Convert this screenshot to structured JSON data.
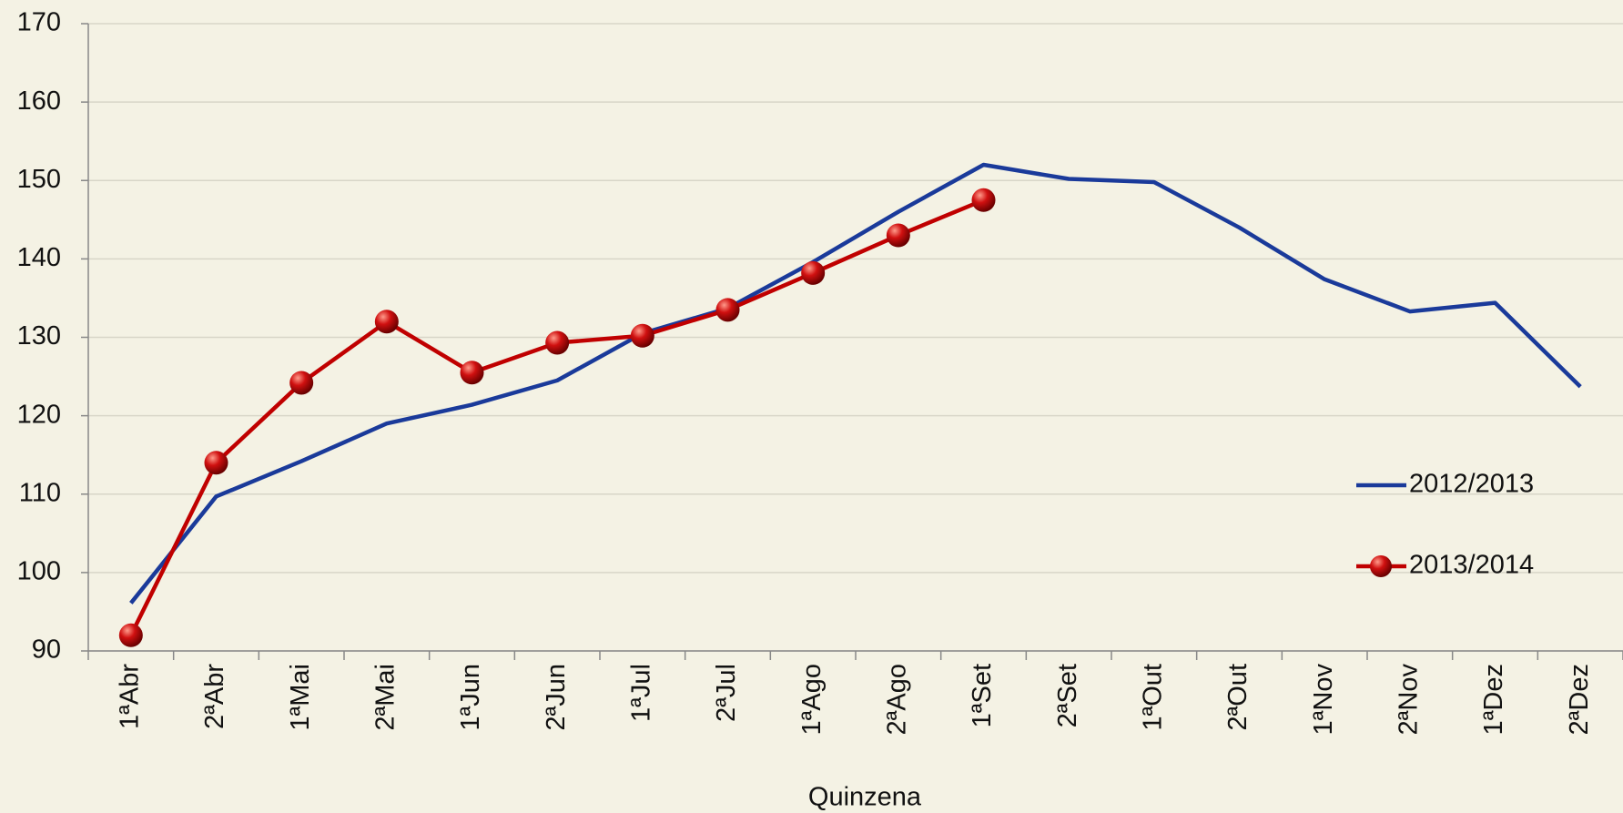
{
  "chart_data": {
    "type": "line",
    "x_label": "Quinzena",
    "categories": [
      "1ªAbr",
      "2ªAbr",
      "1ªMai",
      "2ªMai",
      "1ªJun",
      "2ªJun",
      "1ªJul",
      "2ªJul",
      "1ªAgo",
      "2ªAgo",
      "1ªSet",
      "2ªSet",
      "1ªOut",
      "2ªOut",
      "1ªNov",
      "2ªNov",
      "1ªDez",
      "2ªDez"
    ],
    "series": [
      {
        "name": "2012/2013",
        "color": "#1a3a9a",
        "marker": false,
        "values": [
          96.1,
          109.7,
          114.2,
          119,
          121.4,
          124.5,
          130.5,
          133.7,
          139.6,
          146,
          152,
          150.2,
          149.8,
          144,
          137.4,
          133.3,
          134.4,
          123.7
        ]
      },
      {
        "name": "2013/2014",
        "color": "#c00000",
        "marker": true,
        "values": [
          92,
          114,
          124.2,
          132,
          125.5,
          129.3,
          130.2,
          133.5,
          138.2,
          143,
          147.5,
          null,
          null,
          null,
          null,
          null,
          null,
          null
        ]
      }
    ],
    "ylim": [
      90,
      170
    ],
    "yticks": [
      90,
      100,
      110,
      120,
      130,
      140,
      150,
      160,
      170
    ],
    "grid": true,
    "legend": "right"
  }
}
